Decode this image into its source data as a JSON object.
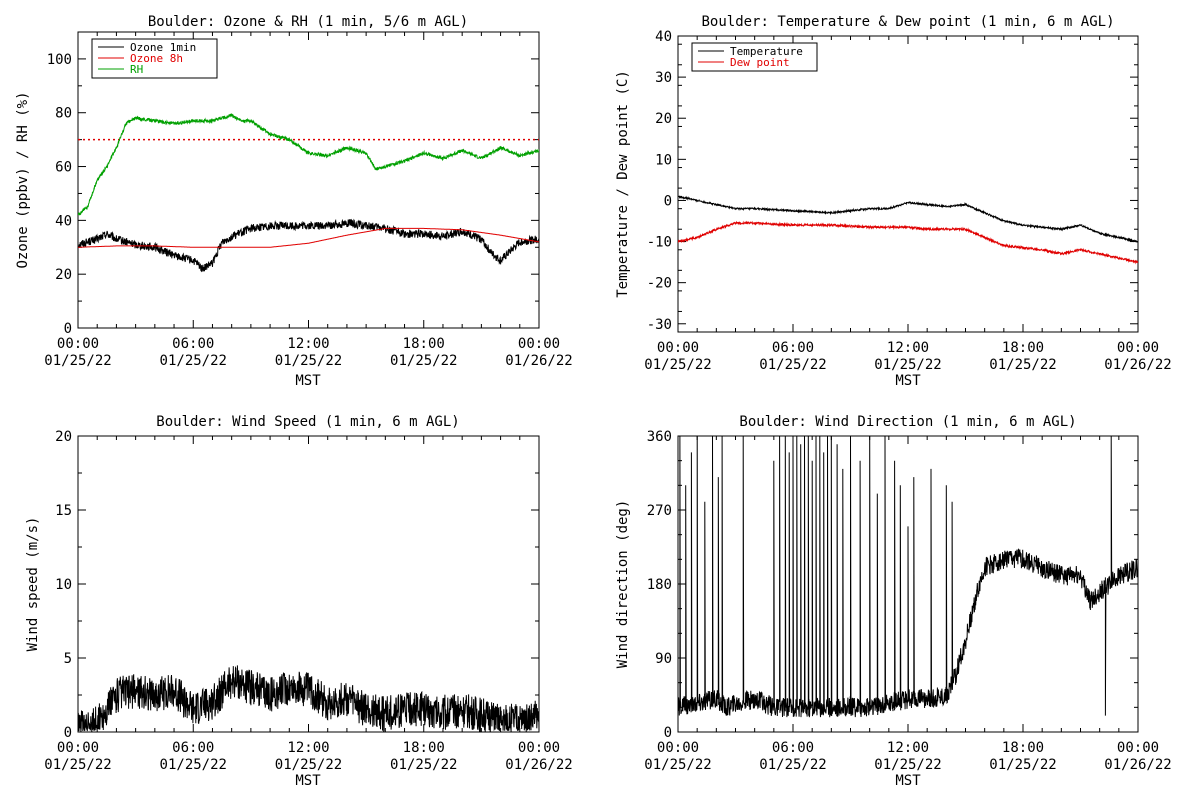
{
  "colors": {
    "black": "#000000",
    "red": "#e00000",
    "green": "#00a000"
  },
  "charts": [
    {
      "id": "ozone-rh",
      "title": "Boulder: Ozone & RH (1 min, 5/6 m AGL)",
      "ylabel": "Ozone (ppbv) / RH (%)",
      "xlabel": "MST",
      "xticks": [
        {
          "t": 0,
          "l1": "00:00",
          "l2": "01/25/22"
        },
        {
          "t": 6,
          "l1": "06:00",
          "l2": "01/25/22"
        },
        {
          "t": 12,
          "l1": "12:00",
          "l2": "01/25/22"
        },
        {
          "t": 18,
          "l1": "18:00",
          "l2": "01/25/22"
        },
        {
          "t": 24,
          "l1": "00:00",
          "l2": "01/26/22"
        }
      ],
      "yticks": [
        0,
        20,
        40,
        60,
        80,
        100
      ],
      "ylim": [
        0,
        110
      ],
      "legend": [
        {
          "label": "Ozone 1min",
          "color": "#000000"
        },
        {
          "label": "Ozone 8h",
          "color": "#e00000"
        },
        {
          "label": "RH",
          "color": "#00a000"
        }
      ],
      "reference_line": {
        "y": 70,
        "color": "#e00000",
        "style": "dotted"
      },
      "chart_data": {
        "type": "line",
        "x_units": "hours since 00:00 01/25/22",
        "series": [
          {
            "name": "Ozone 1min",
            "color": "#000000",
            "noise": 1.5,
            "x": [
              0,
              1,
              1.5,
              2,
              3,
              4,
              5,
              6,
              6.5,
              7,
              7.5,
              8,
              9,
              10,
              11,
              12,
              13,
              14,
              15,
              16,
              17,
              18,
              19,
              20,
              21,
              21.5,
              22,
              23,
              24
            ],
            "y": [
              31,
              33,
              35,
              33,
              31,
              30,
              27,
              25,
              22,
              24,
              32,
              34,
              37,
              38,
              38,
              38,
              38,
              39,
              38,
              37,
              35,
              35,
              34,
              36,
              33,
              28,
              25,
              32,
              33
            ]
          },
          {
            "name": "Ozone 8h",
            "color": "#e00000",
            "noise": 0,
            "x": [
              0,
              2,
              4,
              6,
              8,
              10,
              12,
              14,
              16,
              18,
              20,
              22,
              24
            ],
            "y": [
              30,
              30.5,
              30.5,
              30,
              30,
              30,
              31.5,
              34.5,
              37,
              37,
              36.5,
              34.5,
              32
            ]
          },
          {
            "name": "RH",
            "color": "#00a000",
            "noise": 0.6,
            "x": [
              0,
              0.5,
              1,
              1.5,
              2,
              2.5,
              3,
              4,
              5,
              6,
              7,
              8,
              8.5,
              9,
              10,
              11,
              12,
              13,
              14,
              15,
              15.5,
              16,
              17,
              18,
              19,
              20,
              21,
              22,
              23,
              24
            ],
            "y": [
              42,
              45,
              55,
              60,
              67,
              76,
              78,
              77,
              76,
              77,
              77,
              79,
              77,
              77,
              72,
              70,
              65,
              64,
              67,
              65,
              59,
              60,
              62,
              65,
              63,
              66,
              63,
              67,
              64,
              66
            ]
          }
        ]
      }
    },
    {
      "id": "temp-dew",
      "title": "Boulder: Temperature & Dew point (1 min, 6 m AGL)",
      "ylabel": "Temperature / Dew point (C)",
      "xlabel": "MST",
      "xticks": [
        {
          "t": 0,
          "l1": "00:00",
          "l2": "01/25/22"
        },
        {
          "t": 6,
          "l1": "06:00",
          "l2": "01/25/22"
        },
        {
          "t": 12,
          "l1": "12:00",
          "l2": "01/25/22"
        },
        {
          "t": 18,
          "l1": "18:00",
          "l2": "01/25/22"
        },
        {
          "t": 24,
          "l1": "00:00",
          "l2": "01/26/22"
        }
      ],
      "yticks": [
        -30,
        -20,
        -10,
        0,
        10,
        20,
        30,
        40
      ],
      "ylim": [
        -32,
        40
      ],
      "legend": [
        {
          "label": "Temperature",
          "color": "#000000"
        },
        {
          "label": "Dew point",
          "color": "#e00000"
        }
      ],
      "chart_data": {
        "type": "line",
        "x_units": "hours since 00:00 01/25/22",
        "series": [
          {
            "name": "Temperature",
            "color": "#000000",
            "noise": 0.2,
            "x": [
              0,
              1,
              2,
              3,
              4,
              6,
              8,
              10,
              11,
              12,
              13,
              14,
              15,
              16,
              17,
              18,
              19,
              20,
              21,
              22,
              23,
              24
            ],
            "y": [
              1,
              0,
              -1,
              -2,
              -2,
              -2.5,
              -3,
              -2,
              -2,
              -0.5,
              -1,
              -1.5,
              -1,
              -3,
              -5,
              -6,
              -6.5,
              -7,
              -6,
              -8,
              -9,
              -10
            ]
          },
          {
            "name": "Dew point",
            "color": "#e00000",
            "noise": 0.25,
            "x": [
              0,
              1,
              2,
              3,
              4,
              6,
              8,
              10,
              12,
              13,
              14,
              15,
              16,
              17,
              18,
              19,
              20,
              21,
              22,
              23,
              24
            ],
            "y": [
              -10,
              -9,
              -7,
              -5.5,
              -5.5,
              -6,
              -6,
              -6.5,
              -6.5,
              -7,
              -7,
              -7,
              -9,
              -11,
              -11.5,
              -12,
              -13,
              -12,
              -13,
              -14,
              -15
            ]
          }
        ]
      }
    },
    {
      "id": "wind-speed",
      "title": "Boulder: Wind Speed (1 min, 6 m AGL)",
      "ylabel": "Wind speed (m/s)",
      "xlabel": "MST",
      "xticks": [
        {
          "t": 0,
          "l1": "00:00",
          "l2": "01/25/22"
        },
        {
          "t": 6,
          "l1": "06:00",
          "l2": "01/25/22"
        },
        {
          "t": 12,
          "l1": "12:00",
          "l2": "01/25/22"
        },
        {
          "t": 18,
          "l1": "18:00",
          "l2": "01/25/22"
        },
        {
          "t": 24,
          "l1": "00:00",
          "l2": "01/26/22"
        }
      ],
      "yticks": [
        0,
        5,
        10,
        15,
        20
      ],
      "ylim": [
        0,
        20
      ],
      "legend": [],
      "chart_data": {
        "type": "line",
        "x_units": "hours since 00:00 01/25/22",
        "series": [
          {
            "color": "#000000",
            "noise": 1.2,
            "floor": 0,
            "x": [
              0,
              1,
              1.5,
              2,
              3,
              4,
              5,
              6,
              7,
              8,
              9,
              10,
              11,
              12,
              13,
              14,
              15,
              16,
              17,
              18,
              19,
              20,
              21,
              22,
              23,
              24
            ],
            "y": [
              0.2,
              0.6,
              1.5,
              2.5,
              2.8,
              2.5,
              2.8,
              1.5,
              2,
              3.5,
              3,
              2.5,
              3,
              2.8,
              2,
              2.2,
              1.5,
              1.2,
              1.5,
              1.5,
              1.3,
              1.5,
              1.2,
              0.7,
              0.8,
              1
            ]
          }
        ]
      }
    },
    {
      "id": "wind-dir",
      "title": "Boulder: Wind Direction (1 min, 6 m AGL)",
      "ylabel": "Wind direction (deg)",
      "xlabel": "MST",
      "xticks": [
        {
          "t": 0,
          "l1": "00:00",
          "l2": "01/25/22"
        },
        {
          "t": 6,
          "l1": "06:00",
          "l2": "01/25/22"
        },
        {
          "t": 12,
          "l1": "12:00",
          "l2": "01/25/22"
        },
        {
          "t": 18,
          "l1": "18:00",
          "l2": "01/25/22"
        },
        {
          "t": 24,
          "l1": "00:00",
          "l2": "01/26/22"
        }
      ],
      "yticks": [
        0,
        90,
        180,
        270,
        360
      ],
      "ylim": [
        0,
        360
      ],
      "legend": [],
      "chart_data": {
        "type": "line",
        "x_units": "hours since 00:00 01/25/22",
        "series": [
          {
            "color": "#000000",
            "noise": 12,
            "floor": 0,
            "ceil": 360,
            "x": [
              0,
              2,
              2.5,
              3,
              4,
              5,
              6,
              8,
              9,
              10,
              11,
              12,
              13,
              14,
              14.5,
              15,
              15.5,
              16,
              17,
              18,
              19,
              20,
              21,
              21.5,
              22,
              23,
              24
            ],
            "y": [
              30,
              40,
              30,
              35,
              40,
              30,
              30,
              30,
              30,
              30,
              35,
              40,
              40,
              45,
              70,
              110,
              160,
              200,
              210,
              210,
              200,
              190,
              190,
              160,
              170,
              190,
              200
            ],
            "spikes": [
              {
                "t": 0.1,
                "v": 360
              },
              {
                "t": 0.4,
                "v": 300
              },
              {
                "t": 0.7,
                "v": 340
              },
              {
                "t": 1.0,
                "v": 360
              },
              {
                "t": 1.4,
                "v": 280
              },
              {
                "t": 1.8,
                "v": 360
              },
              {
                "t": 2.1,
                "v": 310
              },
              {
                "t": 2.3,
                "v": 360
              },
              {
                "t": 3.4,
                "v": 360
              },
              {
                "t": 5.0,
                "v": 330
              },
              {
                "t": 5.3,
                "v": 360
              },
              {
                "t": 5.6,
                "v": 360
              },
              {
                "t": 5.8,
                "v": 340
              },
              {
                "t": 6.0,
                "v": 360
              },
              {
                "t": 6.2,
                "v": 360
              },
              {
                "t": 6.4,
                "v": 350
              },
              {
                "t": 6.6,
                "v": 360
              },
              {
                "t": 6.8,
                "v": 360
              },
              {
                "t": 7.0,
                "v": 330
              },
              {
                "t": 7.2,
                "v": 360
              },
              {
                "t": 7.4,
                "v": 360
              },
              {
                "t": 7.6,
                "v": 340
              },
              {
                "t": 7.8,
                "v": 360
              },
              {
                "t": 8.0,
                "v": 360
              },
              {
                "t": 8.3,
                "v": 350
              },
              {
                "t": 8.6,
                "v": 320
              },
              {
                "t": 9.0,
                "v": 360
              },
              {
                "t": 9.5,
                "v": 330
              },
              {
                "t": 10.0,
                "v": 360
              },
              {
                "t": 10.4,
                "v": 290
              },
              {
                "t": 10.8,
                "v": 360
              },
              {
                "t": 11.3,
                "v": 330
              },
              {
                "t": 11.6,
                "v": 300
              },
              {
                "t": 12.0,
                "v": 250
              },
              {
                "t": 12.3,
                "v": 310
              },
              {
                "t": 13.2,
                "v": 320
              },
              {
                "t": 14.0,
                "v": 300
              },
              {
                "t": 14.3,
                "v": 280
              },
              {
                "t": 22.6,
                "v": 360
              },
              {
                "t": 22.3,
                "v": 20
              }
            ]
          }
        ]
      }
    }
  ]
}
